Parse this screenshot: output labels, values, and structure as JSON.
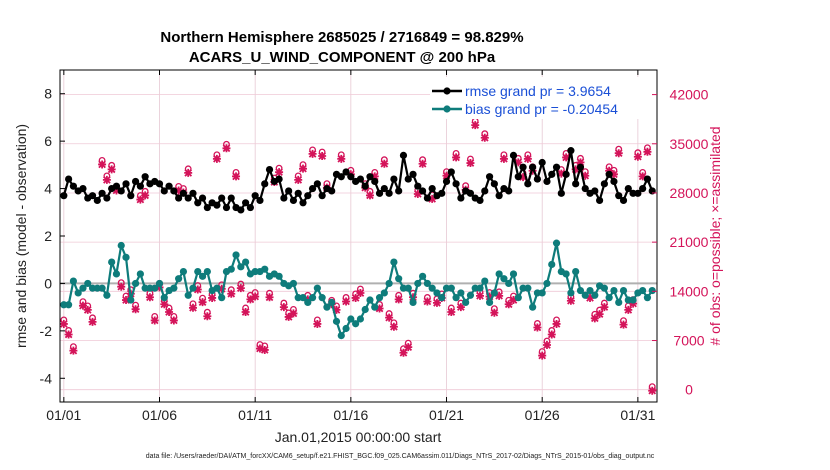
{
  "chart_data": {
    "type": "line",
    "title_line1": "Northern Hemisphere 2685025 / 2716849 = 98.829%",
    "title_line2": "ACARS_U_WIND_COMPONENT @ 200 hPa",
    "xlabel": "Jan.01,2015 00:00:00 start",
    "ylabel": "rmse and bias (model - observation)",
    "ylabel_right": "# of obs: o=possible; ×=assimilated",
    "footnote": "data file: /Users/raeder/DAI/ATM_forcXX/CAM6_setup/f.e21.FHIST_BGC.f09_025.CAM6assim.011/Diags_NTrS_2017-02/Diags_NTrS_2015-01/obs_diag_output.nc",
    "x_ticks": [
      "01/01",
      "01/06",
      "01/11",
      "01/16",
      "01/21",
      "01/26",
      "01/31"
    ],
    "x_tick_values": [
      1,
      6,
      11,
      16,
      21,
      26,
      31
    ],
    "xlim": [
      0.8,
      32.0
    ],
    "ylim": [
      -5,
      9
    ],
    "y_ticks": [
      "-4",
      "-2",
      "0",
      "2",
      "4",
      "6",
      "8"
    ],
    "y_tick_values": [
      -4,
      -2,
      0,
      2,
      4,
      6,
      8
    ],
    "ylim_right": [
      -1750,
      45500
    ],
    "y_ticks_right": [
      "0",
      "7000",
      "14000",
      "21000",
      "28000",
      "35000",
      "42000"
    ],
    "y_tick_values_right": [
      0,
      7000,
      14000,
      21000,
      28000,
      35000,
      42000
    ],
    "legend": [
      {
        "name": "rmse grand pr = 3.9654",
        "color": "#000000"
      },
      {
        "name": "bias grand pr = -0.20454",
        "color": "#0e7c7b"
      }
    ],
    "colors": {
      "rmse": "#000000",
      "bias": "#0e7c7b",
      "count": "#d4145a",
      "left_axis": "#000000",
      "right_axis": "#d4145a",
      "legend_text": "#1a4fd6",
      "zero_line": "#b0b0b0"
    },
    "series": [
      {
        "name": "rmse",
        "x": [
          1.0,
          1.25,
          1.5,
          1.75,
          2.0,
          2.25,
          2.5,
          2.75,
          3.0,
          3.25,
          3.5,
          3.75,
          4.0,
          4.25,
          4.5,
          4.75,
          5.0,
          5.25,
          5.5,
          5.75,
          6.0,
          6.25,
          6.5,
          6.75,
          7.0,
          7.25,
          7.5,
          7.75,
          8.0,
          8.25,
          8.5,
          8.75,
          9.0,
          9.25,
          9.5,
          9.75,
          10.0,
          10.25,
          10.5,
          10.75,
          11.0,
          11.25,
          11.5,
          11.75,
          12.0,
          12.25,
          12.5,
          12.75,
          13.0,
          13.25,
          13.5,
          13.75,
          14.0,
          14.25,
          14.5,
          14.75,
          15.0,
          15.25,
          15.5,
          15.75,
          16.0,
          16.25,
          16.5,
          16.75,
          17.0,
          17.25,
          17.5,
          17.75,
          18.0,
          18.25,
          18.5,
          18.75,
          19.0,
          19.25,
          19.5,
          19.75,
          20.0,
          20.25,
          20.5,
          20.75,
          21.0,
          21.25,
          21.5,
          21.75,
          22.0,
          22.25,
          22.5,
          22.75,
          23.0,
          23.25,
          23.5,
          23.75,
          24.0,
          24.25,
          24.5,
          24.75,
          25.0,
          25.25,
          25.5,
          25.75,
          26.0,
          26.25,
          26.5,
          26.75,
          27.0,
          27.25,
          27.5,
          27.75,
          28.0,
          28.25,
          28.5,
          28.75,
          29.0,
          29.25,
          29.5,
          29.75,
          30.0,
          30.25,
          30.5,
          30.75,
          31.0,
          31.25,
          31.5,
          31.75
        ],
        "values": [
          3.7,
          4.4,
          4.1,
          3.9,
          4.0,
          3.6,
          3.7,
          3.5,
          3.8,
          3.6,
          4.0,
          4.1,
          3.9,
          4.2,
          3.7,
          4.3,
          4.1,
          4.5,
          4.2,
          4.3,
          4.2,
          3.9,
          4.1,
          3.9,
          3.6,
          3.8,
          3.6,
          3.8,
          3.4,
          3.6,
          3.2,
          3.4,
          3.3,
          3.6,
          3.2,
          3.6,
          3.2,
          3.1,
          3.4,
          3.2,
          3.7,
          3.5,
          4.2,
          4.8,
          4.3,
          4.4,
          3.6,
          3.9,
          3.5,
          3.8,
          3.4,
          3.7,
          4.0,
          4.2,
          3.7,
          4.0,
          3.9,
          4.6,
          4.5,
          4.7,
          4.5,
          4.3,
          4.4,
          4.1,
          4.5,
          4.3,
          3.8,
          4.0,
          3.8,
          4.4,
          3.9,
          5.4,
          4.4,
          4.6,
          4.1,
          3.9,
          3.6,
          4.0,
          3.7,
          3.8,
          4.3,
          4.7,
          4.2,
          3.6,
          3.9,
          3.8,
          3.6,
          3.5,
          3.9,
          4.5,
          4.2,
          3.7,
          4.0,
          3.9,
          5.4,
          4.5,
          4.9,
          4.2,
          4.9,
          4.4,
          5.1,
          4.3,
          4.6,
          4.9,
          3.8,
          4.6,
          5.6,
          4.2,
          4.9,
          4.0,
          3.8,
          3.9,
          3.5,
          4.2,
          4.6,
          4.3,
          3.7,
          3.5,
          4.0,
          3.8,
          3.8,
          4.0,
          4.4,
          3.9
        ]
      },
      {
        "name": "bias",
        "x": [
          1.0,
          1.25,
          1.5,
          1.75,
          2.0,
          2.25,
          2.5,
          2.75,
          3.0,
          3.25,
          3.5,
          3.75,
          4.0,
          4.25,
          4.5,
          4.75,
          5.0,
          5.25,
          5.5,
          5.75,
          6.0,
          6.25,
          6.5,
          6.75,
          7.0,
          7.25,
          7.5,
          7.75,
          8.0,
          8.25,
          8.5,
          8.75,
          9.0,
          9.25,
          9.5,
          9.75,
          10.0,
          10.25,
          10.5,
          10.75,
          11.0,
          11.25,
          11.5,
          11.75,
          12.0,
          12.25,
          12.5,
          12.75,
          13.0,
          13.25,
          13.5,
          13.75,
          14.0,
          14.25,
          14.5,
          14.75,
          15.0,
          15.25,
          15.5,
          15.75,
          16.0,
          16.25,
          16.5,
          16.75,
          17.0,
          17.25,
          17.5,
          17.75,
          18.0,
          18.25,
          18.5,
          18.75,
          19.0,
          19.25,
          19.5,
          19.75,
          20.0,
          20.25,
          20.5,
          20.75,
          21.0,
          21.25,
          21.5,
          21.75,
          22.0,
          22.25,
          22.5,
          22.75,
          23.0,
          23.25,
          23.5,
          23.75,
          24.0,
          24.25,
          24.5,
          24.75,
          25.0,
          25.25,
          25.5,
          25.75,
          26.0,
          26.25,
          26.5,
          26.75,
          27.0,
          27.25,
          27.5,
          27.75,
          28.0,
          28.25,
          28.5,
          28.75,
          29.0,
          29.25,
          29.5,
          29.75,
          30.0,
          30.25,
          30.5,
          30.75,
          31.0,
          31.25,
          31.5,
          31.75
        ],
        "values": [
          -0.9,
          -0.9,
          0.1,
          -0.4,
          -0.2,
          0.0,
          -0.2,
          -0.2,
          -0.2,
          -0.5,
          0.9,
          0.4,
          1.6,
          1.1,
          -0.7,
          0.0,
          0.4,
          -0.2,
          -0.2,
          -0.2,
          0.0,
          -0.6,
          -0.3,
          -0.2,
          0.2,
          0.5,
          -0.5,
          -0.2,
          0.5,
          0.3,
          0.5,
          -0.3,
          -0.2,
          -0.6,
          0.5,
          0.6,
          1.2,
          0.7,
          0.9,
          0.4,
          0.5,
          0.5,
          0.6,
          0.3,
          0.4,
          0.3,
          0.0,
          -0.1,
          0.0,
          -0.6,
          -0.6,
          -0.8,
          -0.6,
          -0.2,
          -0.6,
          -1.0,
          -0.8,
          -1.6,
          -2.2,
          -1.9,
          -1.5,
          -1.7,
          -1.5,
          -1.1,
          -0.7,
          -1.0,
          -0.6,
          -0.4,
          0.0,
          0.9,
          0.2,
          -0.2,
          -0.2,
          -0.8,
          0.0,
          0.3,
          0.0,
          -0.2,
          -0.4,
          -0.6,
          -0.2,
          -0.2,
          -0.6,
          -0.4,
          -0.8,
          -0.5,
          -0.2,
          -0.2,
          0.1,
          -0.8,
          -0.4,
          0.4,
          0.2,
          0.0,
          0.4,
          -0.6,
          -0.2,
          -0.2,
          -1.0,
          -0.4,
          -0.4,
          0.0,
          0.8,
          1.7,
          0.5,
          0.4,
          -0.4,
          0.5,
          -0.3,
          -0.5,
          -0.3,
          -0.5,
          -0.1,
          -0.2,
          -0.6,
          -0.3,
          -0.8,
          -0.3,
          -0.7,
          -0.7,
          -0.4,
          -0.3,
          -0.6,
          -0.3
        ]
      },
      {
        "name": "obs count (possible / assimilated)",
        "axis": "right",
        "x": [
          1.0,
          1.25,
          1.5,
          2.0,
          2.25,
          2.5,
          3.0,
          3.25,
          3.5,
          3.75,
          4.0,
          4.25,
          4.5,
          4.75,
          5.0,
          5.25,
          5.5,
          5.75,
          6.0,
          6.25,
          6.5,
          6.75,
          7.0,
          7.25,
          7.5,
          7.75,
          8.0,
          8.25,
          8.5,
          8.75,
          9.0,
          9.25,
          9.5,
          9.75,
          10.0,
          10.25,
          10.5,
          10.75,
          11.0,
          11.25,
          11.5,
          11.75,
          12.0,
          12.25,
          12.5,
          12.75,
          13.0,
          13.25,
          13.5,
          13.75,
          14.0,
          14.25,
          14.5,
          14.75,
          15.0,
          15.25,
          15.5,
          15.75,
          16.0,
          16.25,
          16.5,
          16.75,
          17.0,
          17.25,
          17.5,
          17.75,
          18.0,
          18.25,
          18.5,
          18.75,
          19.0,
          19.25,
          19.5,
          19.75,
          20.0,
          20.25,
          20.5,
          20.75,
          21.0,
          21.25,
          21.5,
          21.75,
          22.0,
          22.25,
          22.5,
          22.75,
          23.0,
          23.25,
          23.5,
          23.75,
          24.0,
          24.25,
          24.5,
          24.75,
          25.0,
          25.25,
          25.5,
          25.75,
          26.0,
          26.25,
          26.5,
          26.75,
          27.0,
          27.25,
          27.5,
          27.75,
          28.0,
          28.25,
          28.5,
          28.75,
          29.0,
          29.25,
          29.5,
          29.75,
          30.0,
          30.25,
          30.5,
          30.75,
          31.0,
          31.25,
          31.5,
          31.75
        ],
        "values": [
          9500,
          8000,
          5700,
          12100,
          11500,
          9800,
          32200,
          30000,
          31500,
          28500,
          14800,
          12900,
          13800,
          11600,
          27200,
          27800,
          13300,
          10000,
          14700,
          12300,
          11200,
          10000,
          28500,
          28200,
          31000,
          11800,
          14400,
          12600,
          10600,
          13200,
          33000,
          14500,
          34500,
          13800,
          30500,
          14600,
          11200,
          13000,
          13400,
          6000,
          5800,
          13300,
          29700,
          31100,
          11900,
          10500,
          11000,
          30000,
          31600,
          13000,
          33700,
          9500,
          33400,
          28900,
          12300,
          11500,
          33000,
          12700,
          30800,
          13200,
          13900,
          28900,
          27800,
          30500,
          11700,
          32300,
          10400,
          9100,
          13000,
          5400,
          6200,
          13300,
          28000,
          32300,
          12700,
          27300,
          12500,
          13200,
          30600,
          11200,
          33200,
          11900,
          28600,
          32400,
          37800,
          13500,
          36000,
          13400,
          11100,
          13500,
          33000,
          12300,
          12900,
          32500,
          30400,
          33000,
          31300,
          9000,
          5000,
          6500,
          8000,
          9500,
          30900,
          33200,
          12800,
          31500,
          32500,
          30600,
          13200,
          10300,
          10900,
          11900,
          31300,
          30800,
          33800,
          9400,
          11500,
          12400,
          33300,
          30500,
          34000,
          0
        ]
      }
    ]
  }
}
